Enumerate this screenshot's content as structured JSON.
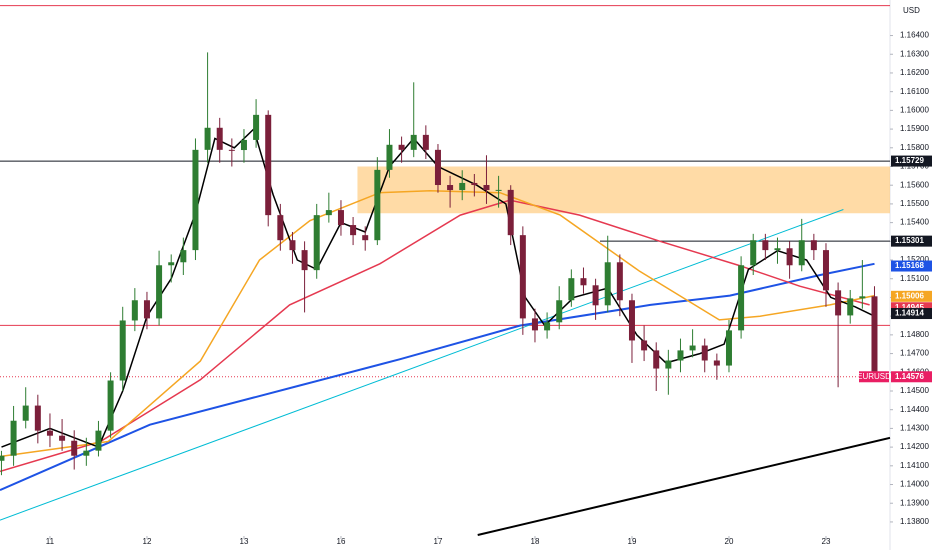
{
  "chart_data": {
    "type": "candlestick",
    "currency": "USD",
    "symbol": "EURUSD",
    "up_color": "#2e7d32",
    "down_color": "#7b1f3a",
    "xlim": [
      -0.515,
      8.66
    ],
    "ylim": [
      1.1365,
      1.1659
    ],
    "xticks": [
      {
        "value": 0,
        "label": "11"
      },
      {
        "value": 1,
        "label": "12"
      },
      {
        "value": 2,
        "label": "13"
      },
      {
        "value": 3,
        "label": "16"
      },
      {
        "value": 4,
        "label": "17"
      },
      {
        "value": 5,
        "label": "18"
      },
      {
        "value": 6,
        "label": "19"
      },
      {
        "value": 7,
        "label": "20"
      },
      {
        "value": 8,
        "label": "23"
      }
    ],
    "yticks": [
      {
        "value": 1.138,
        "label": "1.13800"
      },
      {
        "value": 1.139,
        "label": "1.13900"
      },
      {
        "value": 1.14,
        "label": "1.14000"
      },
      {
        "value": 1.141,
        "label": "1.14100"
      },
      {
        "value": 1.142,
        "label": "1.14200"
      },
      {
        "value": 1.143,
        "label": "1.14300"
      },
      {
        "value": 1.144,
        "label": "1.14400"
      },
      {
        "value": 1.145,
        "label": "1.14500"
      },
      {
        "value": 1.146,
        "label": "1.14600"
      },
      {
        "value": 1.147,
        "label": "1.14700"
      },
      {
        "value": 1.148,
        "label": "1.14800"
      },
      {
        "value": 1.149,
        "label": "1.14900"
      },
      {
        "value": 1.15,
        "label": "1.15000"
      },
      {
        "value": 1.151,
        "label": "1.15100"
      },
      {
        "value": 1.152,
        "label": "1.15200"
      },
      {
        "value": 1.153,
        "label": "1.15300"
      },
      {
        "value": 1.154,
        "label": "1.15400"
      },
      {
        "value": 1.155,
        "label": "1.15500"
      },
      {
        "value": 1.156,
        "label": "1.15600"
      },
      {
        "value": 1.157,
        "label": "1.15700"
      },
      {
        "value": 1.158,
        "label": "1.15800"
      },
      {
        "value": 1.159,
        "label": "1.15900"
      },
      {
        "value": 1.16,
        "label": "1.16000"
      },
      {
        "value": 1.161,
        "label": "1.16100"
      },
      {
        "value": 1.162,
        "label": "1.16200"
      },
      {
        "value": 1.163,
        "label": "1.16300"
      },
      {
        "value": 1.164,
        "label": "1.16400"
      }
    ],
    "zone": {
      "from": 3.17,
      "top": 1.157,
      "bottom": 1.1545,
      "color": "#ffcc80"
    },
    "levels": [
      {
        "value": 1.1656,
        "color": "#e53950"
      },
      {
        "value": 1.14851,
        "color": "#e53950"
      },
      {
        "value": 1.15729,
        "color": "#131722"
      },
      {
        "value": 1.15301,
        "color": "#131722",
        "from": 5.67
      },
      {
        "value": 1.14576,
        "color": "#e53950",
        "style": "dotted"
      }
    ],
    "lines": [
      {
        "color": "#00bcd4",
        "width": 1,
        "points": [
          [
            -0.515,
            1.1381
          ],
          [
            8.18,
            1.1547
          ]
        ]
      },
      {
        "color": "#000000",
        "width": 2,
        "points": [
          [
            4.41,
            1.1373
          ],
          [
            8.66,
            1.1425
          ]
        ]
      },
      {
        "color": "#1e53e5",
        "width": 2,
        "points": [
          [
            -0.515,
            1.1397
          ],
          [
            1.03,
            1.1432
          ],
          [
            2.58,
            1.1453
          ],
          [
            3.61,
            1.1467
          ],
          [
            4.85,
            1.1485
          ],
          [
            6.19,
            1.1496
          ],
          [
            7.01,
            1.1501
          ],
          [
            7.94,
            1.1512
          ],
          [
            8.5,
            1.1518
          ]
        ]
      },
      {
        "color": "#e53950",
        "width": 1.5,
        "points": [
          [
            -0.515,
            1.1407
          ],
          [
            0.52,
            1.1423
          ],
          [
            1.55,
            1.1456
          ],
          [
            2.47,
            1.1496
          ],
          [
            3.4,
            1.1518
          ],
          [
            4.23,
            1.1544
          ],
          [
            4.74,
            1.1552
          ],
          [
            5.46,
            1.1544
          ],
          [
            6.29,
            1.153
          ],
          [
            7.11,
            1.1517
          ],
          [
            7.73,
            1.1506
          ],
          [
            8.45,
            1.1496
          ]
        ]
      },
      {
        "color": "#f5a623",
        "width": 1.5,
        "points": [
          [
            -0.515,
            1.1415
          ],
          [
            0.6,
            1.1423
          ],
          [
            1.55,
            1.1466
          ],
          [
            2.16,
            1.152
          ],
          [
            2.68,
            1.1541
          ],
          [
            3.4,
            1.1556
          ],
          [
            3.92,
            1.1557
          ],
          [
            4.64,
            1.1556
          ],
          [
            5.26,
            1.1544
          ],
          [
            6.08,
            1.1514
          ],
          [
            6.9,
            1.1488
          ],
          [
            7.32,
            1.149
          ],
          [
            8.04,
            1.1496
          ],
          [
            8.5,
            1.1501
          ]
        ]
      },
      {
        "color": "#000000",
        "width": 1.5,
        "points": [
          [
            -0.5,
            1.142
          ],
          [
            0,
            1.143
          ],
          [
            0.5,
            1.142
          ],
          [
            0.75,
            1.145
          ],
          [
            1,
            1.149
          ],
          [
            1.25,
            1.151
          ],
          [
            1.5,
            1.1545
          ],
          [
            1.7,
            1.1585
          ],
          [
            1.9,
            1.158
          ],
          [
            2.1,
            1.159
          ],
          [
            2.3,
            1.1555
          ],
          [
            2.55,
            1.152
          ],
          [
            2.75,
            1.1515
          ],
          [
            3,
            1.154
          ],
          [
            3.25,
            1.1535
          ],
          [
            3.5,
            1.157
          ],
          [
            3.75,
            1.1585
          ],
          [
            4,
            1.157
          ],
          [
            4.4,
            1.156
          ],
          [
            4.7,
            1.155
          ],
          [
            4.9,
            1.15
          ],
          [
            5.1,
            1.1485
          ],
          [
            5.4,
            1.15
          ],
          [
            5.75,
            1.1505
          ],
          [
            6.05,
            1.148
          ],
          [
            6.35,
            1.1465
          ],
          [
            6.7,
            1.147
          ],
          [
            6.95,
            1.1475
          ],
          [
            7.2,
            1.1515
          ],
          [
            7.5,
            1.1525
          ],
          [
            7.8,
            1.152
          ],
          [
            8.05,
            1.15
          ],
          [
            8.3,
            1.1495
          ],
          [
            8.5,
            1.149
          ]
        ]
      }
    ],
    "price_labels": [
      {
        "value": 1.15729,
        "color": "#131722"
      },
      {
        "value": 1.15301,
        "color": "#131722"
      },
      {
        "value": 1.15168,
        "color": "#1e53e5"
      },
      {
        "value": 1.15006,
        "color": "#f5a623"
      },
      {
        "value": 1.14945,
        "color": "#e53950"
      },
      {
        "value": 1.14914,
        "color": "#131722"
      },
      {
        "value": 1.14576,
        "color": "#e91e63"
      }
    ],
    "candles": [
      [
        -0.5,
        1.14127,
        1.1418,
        1.1405,
        1.14154
      ],
      [
        -0.375,
        1.14154,
        1.1442,
        1.141,
        1.14341
      ],
      [
        -0.25,
        1.14341,
        1.1452,
        1.143,
        1.14422
      ],
      [
        -0.125,
        1.14422,
        1.1448,
        1.1422,
        1.14288
      ],
      [
        0,
        1.14288,
        1.1438,
        1.142,
        1.14261
      ],
      [
        0.125,
        1.14261,
        1.1435,
        1.1418,
        1.14234
      ],
      [
        0.25,
        1.14234,
        1.1429,
        1.1408,
        1.14154
      ],
      [
        0.375,
        1.14154,
        1.1425,
        1.141,
        1.14181
      ],
      [
        0.5,
        1.14181,
        1.1434,
        1.1415,
        1.14288
      ],
      [
        0.625,
        1.14288,
        1.146,
        1.1425,
        1.14556
      ],
      [
        0.75,
        1.14556,
        1.1495,
        1.145,
        1.14877
      ],
      [
        0.875,
        1.14877,
        1.1505,
        1.1482,
        1.14985
      ],
      [
        1,
        1.14985,
        1.1503,
        1.1483,
        1.14888
      ],
      [
        1.125,
        1.14888,
        1.1525,
        1.1485,
        1.15172
      ],
      [
        1.25,
        1.15172,
        1.1523,
        1.1508,
        1.15188
      ],
      [
        1.375,
        1.15188,
        1.1532,
        1.1512,
        1.15253
      ],
      [
        1.5,
        1.15253,
        1.1585,
        1.152,
        1.15789
      ],
      [
        1.625,
        1.15789,
        1.1631,
        1.1572,
        1.15907
      ],
      [
        1.75,
        1.15907,
        1.1596,
        1.1572,
        1.15789
      ],
      [
        1.875,
        1.15789,
        1.1585,
        1.157,
        1.15788
      ],
      [
        2,
        1.15788,
        1.159,
        1.1572,
        1.15842
      ],
      [
        2.125,
        1.15842,
        1.1606,
        1.158,
        1.15976
      ],
      [
        2.25,
        1.15976,
        1.16,
        1.1538,
        1.1544
      ],
      [
        2.375,
        1.1544,
        1.155,
        1.1525,
        1.15306
      ],
      [
        2.5,
        1.15306,
        1.1535,
        1.1518,
        1.15253
      ],
      [
        2.625,
        1.15253,
        1.153,
        1.1492,
        1.15146
      ],
      [
        2.75,
        1.15146,
        1.155,
        1.151,
        1.1544
      ],
      [
        2.875,
        1.1544,
        1.1556,
        1.154,
        1.15467
      ],
      [
        3,
        1.15467,
        1.1552,
        1.1533,
        1.15387
      ],
      [
        3.125,
        1.15387,
        1.1543,
        1.1528,
        1.15333
      ],
      [
        3.25,
        1.15333,
        1.1538,
        1.1525,
        1.15306
      ],
      [
        3.375,
        1.15306,
        1.1575,
        1.1528,
        1.15682
      ],
      [
        3.5,
        1.15682,
        1.159,
        1.1564,
        1.15816
      ],
      [
        3.625,
        1.15816,
        1.1586,
        1.1572,
        1.15789
      ],
      [
        3.75,
        1.15789,
        1.1615,
        1.1575,
        1.15869
      ],
      [
        3.875,
        1.15869,
        1.1592,
        1.1574,
        1.15789
      ],
      [
        4,
        1.15789,
        1.1582,
        1.1556,
        1.15601
      ],
      [
        4.125,
        1.15601,
        1.1565,
        1.1548,
        1.15574
      ],
      [
        4.25,
        1.15574,
        1.1568,
        1.1552,
        1.15612
      ],
      [
        4.375,
        1.15612,
        1.1566,
        1.1554,
        1.15601
      ],
      [
        4.5,
        1.15601,
        1.1576,
        1.155,
        1.15574
      ],
      [
        4.625,
        1.15574,
        1.1565,
        1.1548,
        1.15575
      ],
      [
        4.75,
        1.15575,
        1.156,
        1.1528,
        1.15333
      ],
      [
        4.875,
        1.15333,
        1.1538,
        1.148,
        1.14888
      ],
      [
        5,
        1.14888,
        1.1494,
        1.1476,
        1.14824
      ],
      [
        5.125,
        1.14824,
        1.1492,
        1.1478,
        1.14867
      ],
      [
        5.25,
        1.14867,
        1.1506,
        1.1483,
        1.14985
      ],
      [
        5.375,
        1.14985,
        1.1515,
        1.1495,
        1.15103
      ],
      [
        5.5,
        1.15103,
        1.1516,
        1.1502,
        1.15065
      ],
      [
        5.625,
        1.15065,
        1.151,
        1.1488,
        1.14958
      ],
      [
        5.75,
        1.14958,
        1.1533,
        1.1492,
        1.15188
      ],
      [
        5.875,
        1.15188,
        1.1523,
        1.149,
        1.14985
      ],
      [
        6,
        1.14985,
        1.1502,
        1.1465,
        1.1477
      ],
      [
        6.125,
        1.1477,
        1.1485,
        1.1466,
        1.14717
      ],
      [
        6.25,
        1.14717,
        1.1476,
        1.145,
        1.1462
      ],
      [
        6.375,
        1.1462,
        1.1472,
        1.1448,
        1.14663
      ],
      [
        6.5,
        1.14663,
        1.1478,
        1.146,
        1.14717
      ],
      [
        6.625,
        1.14717,
        1.1483,
        1.1468,
        1.14743
      ],
      [
        6.75,
        1.14743,
        1.1478,
        1.146,
        1.14663
      ],
      [
        6.875,
        1.14663,
        1.147,
        1.1456,
        1.14636
      ],
      [
        7,
        1.14636,
        1.1488,
        1.146,
        1.14824
      ],
      [
        7.125,
        1.14824,
        1.1522,
        1.1478,
        1.15172
      ],
      [
        7.25,
        1.15172,
        1.1534,
        1.1512,
        1.15306
      ],
      [
        7.375,
        1.15306,
        1.1534,
        1.152,
        1.15253
      ],
      [
        7.5,
        1.15253,
        1.1532,
        1.1518,
        1.15263
      ],
      [
        7.625,
        1.15263,
        1.153,
        1.151,
        1.15172
      ],
      [
        7.75,
        1.15172,
        1.1542,
        1.1514,
        1.15306
      ],
      [
        7.875,
        1.15306,
        1.1534,
        1.152,
        1.15253
      ],
      [
        8,
        1.15253,
        1.1529,
        1.1495,
        1.15038
      ],
      [
        8.125,
        1.15038,
        1.1508,
        1.1452,
        1.14904
      ],
      [
        8.25,
        1.14904,
        1.1504,
        1.1486,
        1.14995
      ],
      [
        8.375,
        1.14995,
        1.152,
        1.1494,
        1.15006
      ],
      [
        8.5,
        1.15006,
        1.1506,
        1.1456,
        1.14576
      ]
    ]
  }
}
